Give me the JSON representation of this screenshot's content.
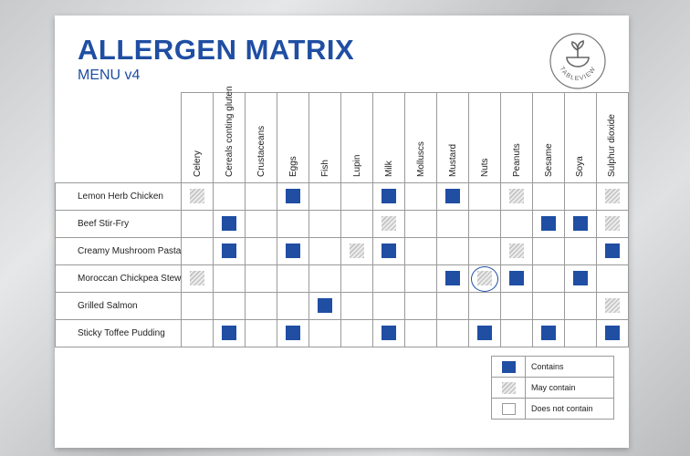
{
  "title": "ALLERGEN MATRIX",
  "subtitle": "MENU v4",
  "logo": {
    "text": "TABLEVIEW",
    "icon": "bowl-plant-icon"
  },
  "colors": {
    "accent": "#1f4ea3",
    "may_contain": "#c4c4c4"
  },
  "allergens": [
    "Celery",
    "Cereals conting gluten",
    "Crustaceans",
    "Eggs",
    "Fish",
    "Lupin",
    "Milk",
    "Molluscs",
    "Mustard",
    "Nuts",
    "Peanuts",
    "Sesame",
    "Soya",
    "Sulphur dioxide"
  ],
  "dishes": [
    {
      "name": "Lemon Herb Chicken",
      "cells": [
        "may",
        "none",
        "none",
        "contains",
        "none",
        "none",
        "contains",
        "none",
        "contains",
        "none",
        "may",
        "none",
        "none",
        "may"
      ]
    },
    {
      "name": "Beef Stir-Fry",
      "cells": [
        "none",
        "contains",
        "none",
        "none",
        "none",
        "none",
        "may",
        "none",
        "none",
        "none",
        "none",
        "contains",
        "contains",
        "may"
      ]
    },
    {
      "name": "Creamy Mushroom Pasta",
      "cells": [
        "none",
        "contains",
        "none",
        "contains",
        "none",
        "may",
        "contains",
        "none",
        "none",
        "none",
        "may",
        "none",
        "none",
        "contains"
      ]
    },
    {
      "name": "Moroccan Chickpea Stew",
      "cells": [
        "may",
        "none",
        "none",
        "none",
        "none",
        "none",
        "none",
        "none",
        "contains",
        "may",
        "contains",
        "none",
        "contains",
        "none"
      ],
      "circled": [
        9
      ]
    },
    {
      "name": "Grilled Salmon",
      "cells": [
        "none",
        "none",
        "none",
        "none",
        "contains",
        "none",
        "none",
        "none",
        "none",
        "none",
        "none",
        "none",
        "none",
        "may"
      ]
    },
    {
      "name": "Sticky Toffee Pudding",
      "cells": [
        "none",
        "contains",
        "none",
        "contains",
        "none",
        "none",
        "contains",
        "none",
        "none",
        "contains",
        "none",
        "contains",
        "none",
        "contains"
      ]
    }
  ],
  "legend": [
    {
      "type": "contains",
      "label": "Contains"
    },
    {
      "type": "may",
      "label": "May contain"
    },
    {
      "type": "none",
      "label": "Does not contain"
    }
  ]
}
